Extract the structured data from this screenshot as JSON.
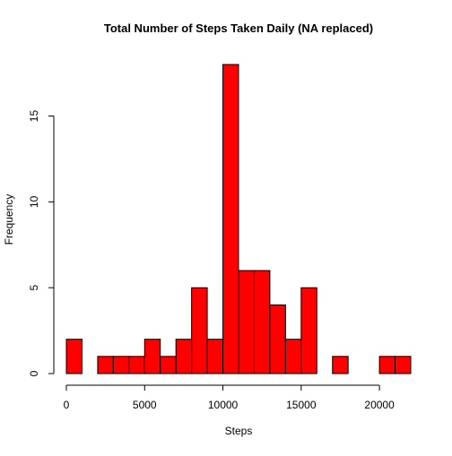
{
  "chart_data": {
    "type": "bar",
    "title": "Total Number of Steps Taken Daily (NA replaced)",
    "xlabel": "Steps",
    "ylabel": "Frequency",
    "bar_color": "#ff0000",
    "bar_border_color": "#000000",
    "bin_width": 1000,
    "bins": [
      {
        "start": 0,
        "end": 1000,
        "count": 2
      },
      {
        "start": 1000,
        "end": 2000,
        "count": 0
      },
      {
        "start": 2000,
        "end": 3000,
        "count": 1
      },
      {
        "start": 3000,
        "end": 4000,
        "count": 1
      },
      {
        "start": 4000,
        "end": 5000,
        "count": 1
      },
      {
        "start": 5000,
        "end": 6000,
        "count": 2
      },
      {
        "start": 6000,
        "end": 7000,
        "count": 1
      },
      {
        "start": 7000,
        "end": 8000,
        "count": 2
      },
      {
        "start": 8000,
        "end": 9000,
        "count": 5
      },
      {
        "start": 9000,
        "end": 10000,
        "count": 2
      },
      {
        "start": 10000,
        "end": 11000,
        "count": 18
      },
      {
        "start": 11000,
        "end": 12000,
        "count": 6
      },
      {
        "start": 12000,
        "end": 13000,
        "count": 6
      },
      {
        "start": 13000,
        "end": 14000,
        "count": 4
      },
      {
        "start": 14000,
        "end": 15000,
        "count": 2
      },
      {
        "start": 15000,
        "end": 16000,
        "count": 5
      },
      {
        "start": 16000,
        "end": 17000,
        "count": 0
      },
      {
        "start": 17000,
        "end": 18000,
        "count": 1
      },
      {
        "start": 18000,
        "end": 19000,
        "count": 0
      },
      {
        "start": 19000,
        "end": 20000,
        "count": 0
      },
      {
        "start": 20000,
        "end": 21000,
        "count": 1
      },
      {
        "start": 21000,
        "end": 22000,
        "count": 1
      }
    ],
    "xlim": [
      0,
      22000
    ],
    "ylim": [
      0,
      18
    ],
    "x_ticks": [
      0,
      5000,
      10000,
      15000,
      20000
    ],
    "x_tick_labels": [
      "0",
      "5000",
      "10000",
      "15000",
      "20000"
    ],
    "y_ticks": [
      0,
      5,
      10,
      15
    ],
    "y_tick_labels": [
      "0",
      "5",
      "10",
      "15"
    ],
    "grid": false,
    "legend": "none"
  }
}
